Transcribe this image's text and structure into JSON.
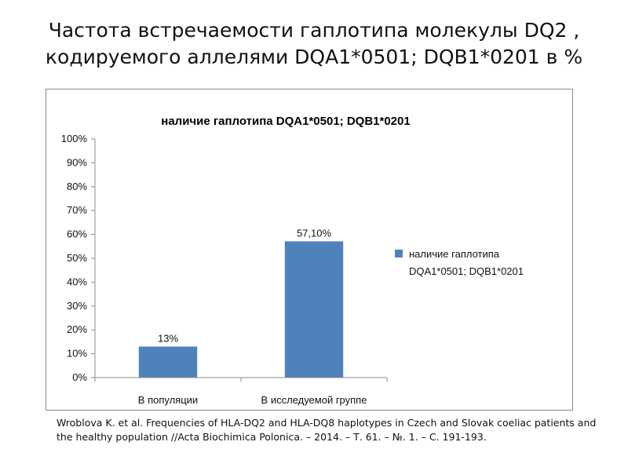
{
  "slide": {
    "title": "Частота встречаемости гаплотипа молекулы DQ2 , кодируемого аллелями DQA1*0501; DQB1*0201 в %"
  },
  "citation": "Wroblova K. et al. Frequencies of HLA-DQ2 and HLA-DQ8 haplotypes in Czech and Slovak coeliac patients and the healthy population //Acta Biochimica Polonica. – 2014. – Т. 61. – №. 1. – С. 191-193.",
  "chart_data": {
    "type": "bar",
    "title": "наличие гаплотипа DQA1*0501; DQB1*0201",
    "categories": [
      "В популяции",
      "В исследуемой группе"
    ],
    "series": [
      {
        "name": "наличие гаплотипа DQA1*0501; DQB1*0201",
        "values": [
          13,
          57.1
        ],
        "data_labels": [
          "13%",
          "57,10%"
        ],
        "color": "#4f81bd"
      }
    ],
    "ylim": [
      0,
      100
    ],
    "yticks": [
      0,
      10,
      20,
      30,
      40,
      50,
      60,
      70,
      80,
      90,
      100
    ],
    "ytick_labels": [
      "0%",
      "10%",
      "20%",
      "30%",
      "40%",
      "50%",
      "60%",
      "70%",
      "80%",
      "90%",
      "100%"
    ],
    "xlabel": "",
    "ylabel": "",
    "grid": false,
    "legend_position": "right"
  }
}
